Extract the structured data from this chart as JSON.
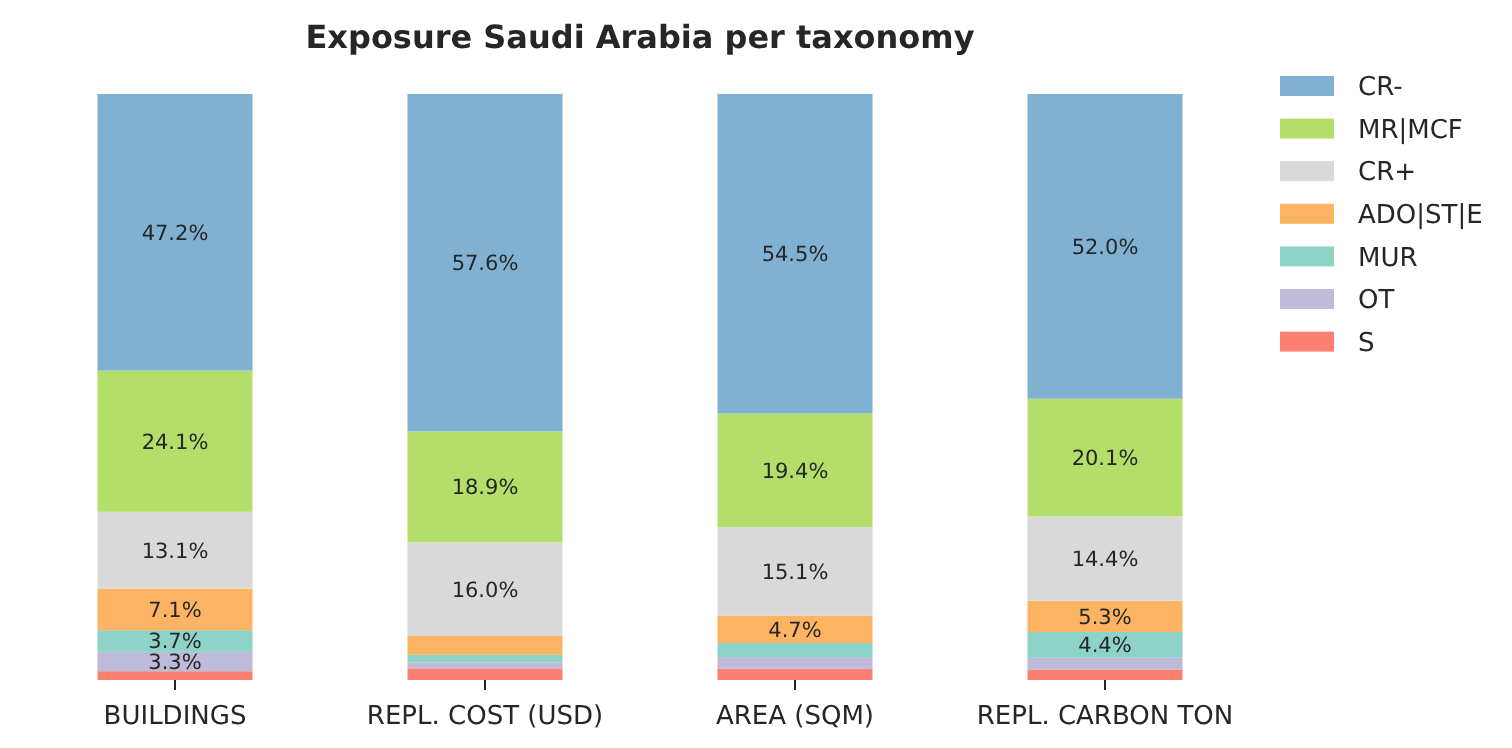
{
  "chart_data": {
    "type": "bar",
    "title": "Exposure Saudi Arabia per taxonomy",
    "stacked": true,
    "legend": "right",
    "categories": [
      "BUILDINGS",
      "REPL. COST (USD)",
      "AREA (SQM)",
      "REPL. CARBON TON"
    ],
    "series": [
      {
        "name": "S",
        "color": "#fb8072",
        "values": [
          1.5,
          2.0,
          1.9,
          1.8
        ],
        "value_labels": [
          null,
          null,
          null,
          null
        ]
      },
      {
        "name": "OT",
        "color": "#bebada",
        "values": [
          3.3,
          1.0,
          2.0,
          2.0
        ],
        "value_labels": [
          "3.3%",
          null,
          null,
          null
        ]
      },
      {
        "name": "MUR",
        "color": "#8dd3c7",
        "values": [
          3.7,
          1.3,
          2.4,
          4.4
        ],
        "value_labels": [
          "3.7%",
          null,
          null,
          "4.4%"
        ]
      },
      {
        "name": "ADO|ST|E",
        "color": "#fdb462",
        "values": [
          7.1,
          3.2,
          4.7,
          5.3
        ],
        "value_labels": [
          "7.1%",
          null,
          "4.7%",
          "5.3%"
        ]
      },
      {
        "name": "CR+",
        "color": "#d9d9d9",
        "values": [
          13.1,
          16.0,
          15.1,
          14.4
        ],
        "value_labels": [
          "13.1%",
          "16.0%",
          "15.1%",
          "14.4%"
        ]
      },
      {
        "name": "MR|MCF",
        "color": "#b3de69",
        "values": [
          24.1,
          18.9,
          19.4,
          20.1
        ],
        "value_labels": [
          "24.1%",
          "18.9%",
          "19.4%",
          "20.1%"
        ]
      },
      {
        "name": "CR-",
        "color": "#80b1d3",
        "values": [
          47.2,
          57.6,
          54.5,
          52.0
        ],
        "value_labels": [
          "47.2%",
          "57.6%",
          "54.5%",
          "52.0%"
        ]
      }
    ]
  }
}
